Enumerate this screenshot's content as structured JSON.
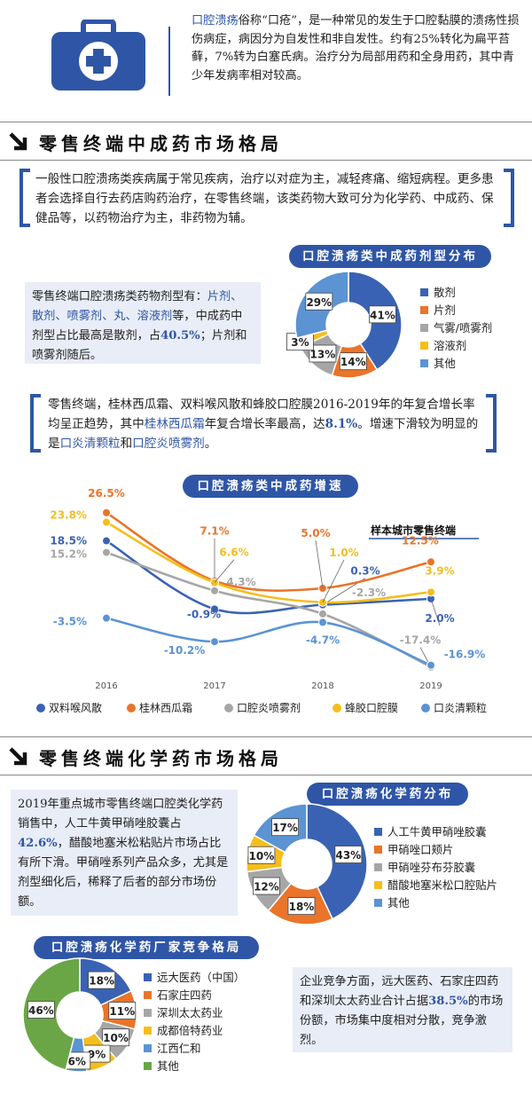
{
  "intro": {
    "term": "口腔溃疡",
    "text": "俗称“口疮”，是一种常见的发生于口腔黏膜的溃疡性损伤病症，病因分为自发性和非自发性。约有25%转化为扁平苔藓，7%转为白塞氏病。治疗分为局部用药和全身用药，其中青少年发病率相对较高。",
    "icon": "medical-kit-icon"
  },
  "sections": {
    "tcm_title": "零售终端中成药市场格局",
    "chem_title": "零售终端化学药市场格局"
  },
  "tcm": {
    "para1": "一般性口腔溃疡类疾病属于常见疾病，治疗以对症为主，减轻疼痛、缩短病程。更多患者会选择自行去药店购药治疗，在零售终端，该类药物大致可分为化学药、中成药、保健品等，以药物治疗为主，非药物为辅。",
    "dosage_text": {
      "p1": "零售终端口腔溃疡类药物剂型有：",
      "p2": "片剂、散剂、喷雾剂、丸、溶液剂",
      "p3": "等，中成药中剂型占比最高是散剂，占",
      "p4": "40.5%",
      "p5": "；片剂和喷雾剂随后。"
    },
    "growth_text": {
      "p1": "零售终端，桂林西瓜霜、双料喉风散和蜂胶口腔膜2016-2019年的年复合增长率均呈正趋势，其中",
      "p2": "桂林西瓜霜",
      "p3": "年复合增长率最高，达",
      "p4": "8.1%",
      "p5": "。增速下滑较为明显的是",
      "p6": "口炎清颗粒",
      "p7": "和",
      "p8": "口腔炎喷雾剂",
      "p9": "。"
    }
  },
  "chem": {
    "dist_text": {
      "p1": "2019年重点城市零售终端口腔类化学药销售中，人工牛黄甲硝唑胶囊占",
      "p2": "42.6%",
      "p3": "，醋酸地塞米松粘贴片市场占比有所下滑。甲硝唑系列产品众多，尤其是剂型细化后，稀释了后者的部分市场份额。"
    },
    "comp_text": {
      "p1": "企业竞争方面，远大医药、石家庄四药和深圳太太药业合计占据",
      "p2": "38.5%",
      "p3": "的市场份额，市场集中度相对分散，竞争激烈。"
    }
  },
  "colors": {
    "blue": "#3a62b4",
    "orange": "#e9742a",
    "gray": "#a6a6a6",
    "yellow": "#f5be1c",
    "lightblue": "#5b93d3",
    "green": "#6aa646",
    "accent": "#2f56a6"
  },
  "chart_data": [
    {
      "type": "pie",
      "title": "口腔溃疡类中成药剂型分布",
      "categories": [
        "散剂",
        "片剂",
        "气雾/喷雾剂",
        "溶液剂",
        "其他"
      ],
      "values": [
        41,
        14,
        13,
        3,
        29
      ],
      "labels": [
        "41%",
        "14%",
        "13%",
        "3%",
        "29%"
      ]
    },
    {
      "type": "line",
      "title": "口腔溃疡类中成药增速",
      "annotation": "样本城市零售终端",
      "x": [
        "2016",
        "2017",
        "2018",
        "2019"
      ],
      "series": [
        {
          "name": "双料喉风散",
          "values": [
            18.5,
            -0.9,
            0.3,
            2.0
          ]
        },
        {
          "name": "桂林西瓜霜",
          "values": [
            26.5,
            7.1,
            5.0,
            12.5
          ]
        },
        {
          "name": "口腔炎喷雾剂",
          "values": [
            15.2,
            4.3,
            -2.3,
            -17.4
          ]
        },
        {
          "name": "蜂胶口腔膜",
          "values": [
            23.8,
            6.6,
            1.0,
            3.9
          ]
        },
        {
          "name": "口炎清颗粒",
          "values": [
            -3.5,
            -10.2,
            -4.7,
            -16.9
          ]
        }
      ],
      "labels": [
        [
          "18.5%",
          "-0.9%",
          "0.3%",
          "2.0%"
        ],
        [
          "26.5%",
          "7.1%",
          "5.0%",
          "12.5%"
        ],
        [
          "15.2%",
          "4.3%",
          "-2.3%",
          "-17.4%"
        ],
        [
          "23.8%",
          "6.6%",
          "1.0%",
          "3.9%"
        ],
        [
          "-3.5%",
          "-10.2%",
          "-4.7%",
          "-16.9%"
        ]
      ]
    },
    {
      "type": "pie",
      "title": "口腔溃疡化学药分布",
      "categories": [
        "人工牛黄甲硝唑胶囊",
        "甲硝唑口颊片",
        "甲硝唑芬布芬胶囊",
        "醋酸地塞米松口腔贴片",
        "其他"
      ],
      "values": [
        43,
        18,
        12,
        10,
        17
      ],
      "labels": [
        "43%",
        "18%",
        "12%",
        "10%",
        "17%"
      ]
    },
    {
      "type": "pie",
      "title": "口腔溃疡化学药厂家竞争格局",
      "categories": [
        "远大医药（中国）",
        "石家庄四药",
        "深圳太太药业",
        "成都倍特药业",
        "江西仁和",
        "其他"
      ],
      "values": [
        18,
        11,
        10,
        9,
        6,
        46
      ],
      "labels": [
        "18%",
        "11%",
        "10%",
        "9%",
        "6%",
        "46%"
      ]
    }
  ]
}
